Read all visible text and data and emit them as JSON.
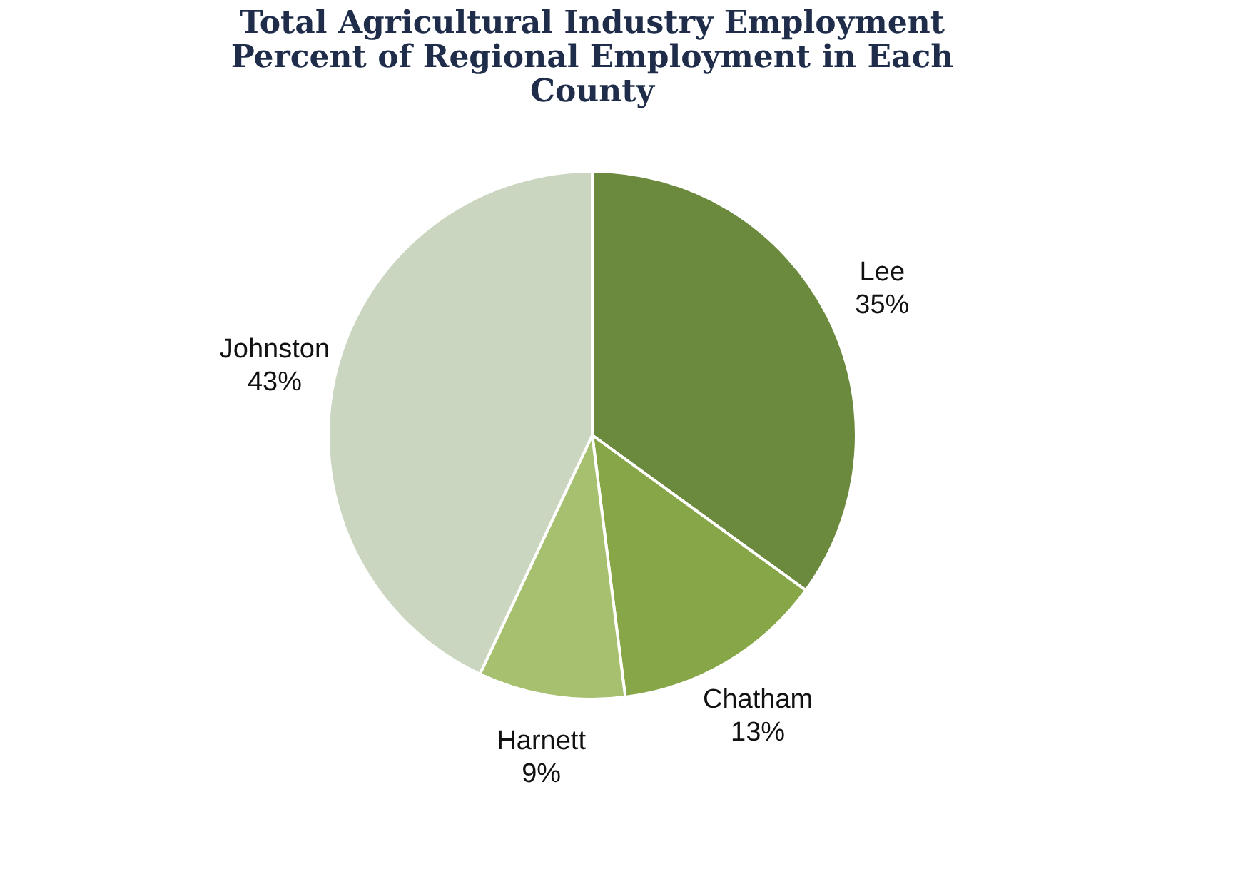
{
  "chart_data": {
    "type": "pie",
    "title": [
      "Total Agricultural Industry Employment",
      "Percent of Regional Employment in Each",
      "County"
    ],
    "categories": [
      "Lee",
      "Chatham",
      "Harnett",
      "Johnston"
    ],
    "values": [
      35,
      13,
      9,
      43
    ],
    "value_labels": [
      "35%",
      "13%",
      "9%",
      "43%"
    ],
    "colors": [
      "#6b8a3e",
      "#87a647",
      "#a6c06f",
      "#cbd6c0"
    ],
    "legend": false
  }
}
